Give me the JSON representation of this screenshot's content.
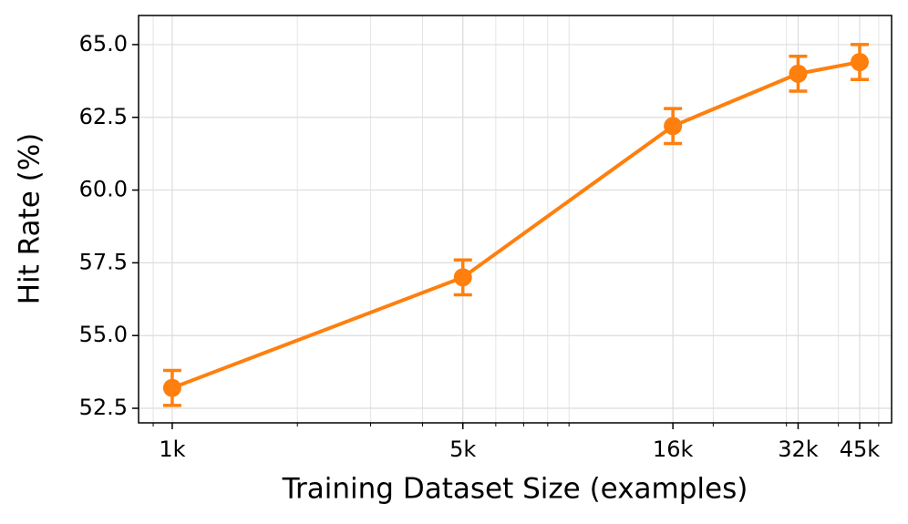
{
  "chart_data": {
    "type": "line",
    "x_label": "Training Dataset Size (examples)",
    "y_label": "Hit Rate (%)",
    "x": [
      1000,
      5000,
      16000,
      32000,
      45000
    ],
    "series": [
      {
        "color": "#ff7f0e",
        "values": [
          53.2,
          57.0,
          62.2,
          64.0,
          64.4
        ],
        "errors": [
          0.6,
          0.6,
          0.6,
          0.6,
          0.6
        ]
      }
    ],
    "x_log": true,
    "xlim": [
      830,
      53700
    ],
    "xticks": [
      {
        "value": 1000,
        "label": "1k"
      },
      {
        "value": 5000,
        "label": "5k"
      },
      {
        "value": 16000,
        "label": "16k"
      },
      {
        "value": 32000,
        "label": "32k"
      },
      {
        "value": 45000,
        "label": "45k"
      }
    ],
    "ylim": [
      52,
      66
    ],
    "yticks": [
      {
        "value": 52.5,
        "label": "52.5"
      },
      {
        "value": 55,
        "label": "55.0"
      },
      {
        "value": 57.5,
        "label": "57.5"
      },
      {
        "value": 60,
        "label": "60.0"
      },
      {
        "value": 62.5,
        "label": "62.5"
      },
      {
        "value": 65,
        "label": "65.0"
      }
    ],
    "grid": true,
    "minor_grid": true
  }
}
